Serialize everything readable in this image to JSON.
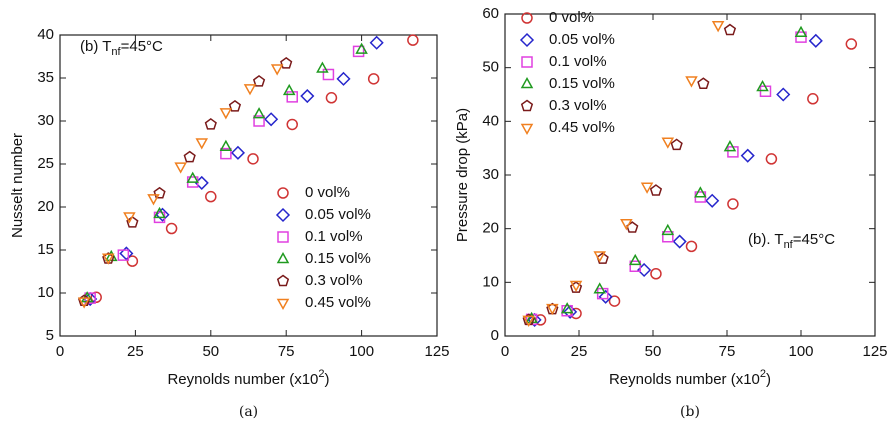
{
  "chart_data": [
    {
      "type": "scatter",
      "caption": "(a)",
      "xlabel": [
        "Reynolds number (x10",
        "2",
        ")"
      ],
      "ylabel": "Nusselt number",
      "annotation": [
        "(b) T",
        "nf",
        "=45°C"
      ],
      "xlim": [
        0,
        125
      ],
      "xticks": [
        0,
        25,
        50,
        75,
        100,
        125
      ],
      "ylim": [
        5,
        40
      ],
      "yticks": [
        5,
        10,
        15,
        20,
        25,
        30,
        35,
        40
      ],
      "legend": "lower right",
      "series": [
        {
          "name": "0 vol%",
          "color": "#d03434",
          "marker": "circle",
          "x": [
            12,
            24,
            37,
            50,
            64,
            77,
            90,
            104,
            117
          ],
          "values": [
            9.5,
            13.7,
            17.5,
            21.2,
            25.6,
            29.6,
            32.7,
            34.9,
            39.4
          ]
        },
        {
          "name": "0.05 vol%",
          "color": "#2626cc",
          "marker": "diamond",
          "x": [
            10,
            22,
            34,
            47,
            59,
            70,
            82,
            94,
            105
          ],
          "values": [
            9.3,
            14.6,
            19.1,
            22.8,
            26.3,
            30.2,
            32.9,
            34.9,
            39.1
          ]
        },
        {
          "name": "0.1 vol%",
          "color": "#e040e0",
          "marker": "square",
          "x": [
            10,
            21,
            33,
            44,
            55,
            66,
            77,
            89,
            99
          ],
          "values": [
            9.4,
            14.4,
            18.8,
            22.9,
            26.2,
            30.0,
            32.8,
            35.4,
            38.1
          ]
        },
        {
          "name": "0.15 vol%",
          "color": "#209a20",
          "marker": "triangle-up",
          "x": [
            9,
            17,
            33,
            44,
            55,
            66,
            76,
            87,
            100
          ],
          "values": [
            9.4,
            14.2,
            19.2,
            23.3,
            27.0,
            30.8,
            33.5,
            36.1,
            38.3
          ]
        },
        {
          "name": "0.3 vol%",
          "color": "#7a1a1a",
          "marker": "pentagon",
          "x": [
            8,
            16,
            24,
            33,
            43,
            50,
            58,
            66,
            75
          ],
          "values": [
            9.1,
            14.0,
            18.2,
            21.6,
            25.8,
            29.6,
            31.7,
            34.6,
            36.7
          ]
        },
        {
          "name": "0.45 vol%",
          "color": "#f08020",
          "marker": "triangle-down",
          "x": [
            8,
            16,
            23,
            31,
            40,
            47,
            55,
            63,
            72
          ],
          "values": [
            9.0,
            14.1,
            18.9,
            21.0,
            24.7,
            27.5,
            31.0,
            33.8,
            36.1
          ]
        }
      ]
    },
    {
      "type": "scatter",
      "caption": "(b)",
      "xlabel": [
        "Reynolds number (x10",
        "2",
        ")"
      ],
      "ylabel": "Pressure drop (kPa)",
      "annotation": [
        "(b). T",
        "nf",
        "=45°C"
      ],
      "xlim": [
        0,
        125
      ],
      "xticks": [
        0,
        25,
        50,
        75,
        100,
        125
      ],
      "ylim": [
        0,
        60
      ],
      "yticks": [
        0,
        10,
        20,
        30,
        40,
        50,
        60
      ],
      "legend": "upper left",
      "series": [
        {
          "name": "0 vol%",
          "color": "#d03434",
          "marker": "circle",
          "x": [
            12,
            24,
            37,
            51,
            63,
            77,
            90,
            104,
            117
          ],
          "values": [
            3.0,
            4.2,
            6.5,
            11.6,
            16.7,
            24.6,
            33.0,
            44.2,
            54.4
          ]
        },
        {
          "name": "0.05 vol%",
          "color": "#2626cc",
          "marker": "diamond",
          "x": [
            10,
            22,
            34,
            47,
            59,
            70,
            82,
            94,
            105
          ],
          "values": [
            3.0,
            4.5,
            7.3,
            12.3,
            17.6,
            25.2,
            33.6,
            45.0,
            55.0
          ]
        },
        {
          "name": "0.1 vol%",
          "color": "#e040e0",
          "marker": "square",
          "x": [
            9,
            21,
            33,
            44,
            55,
            66,
            77,
            88,
            100
          ],
          "values": [
            3.1,
            4.7,
            7.9,
            13.0,
            18.5,
            25.9,
            34.3,
            45.6,
            55.7
          ]
        },
        {
          "name": "0.15 vol%",
          "color": "#209a20",
          "marker": "triangle-up",
          "x": [
            9,
            21,
            32,
            44,
            55,
            66,
            76,
            87,
            100
          ],
          "values": [
            3.2,
            5.0,
            8.7,
            14.0,
            19.6,
            26.6,
            35.2,
            46.4,
            56.5
          ]
        },
        {
          "name": "0.3 vol%",
          "color": "#7a1a1a",
          "marker": "pentagon",
          "x": [
            8,
            16,
            24,
            33,
            43,
            51,
            58,
            67,
            76
          ],
          "values": [
            3.0,
            5.0,
            9.0,
            14.4,
            20.2,
            27.1,
            35.6,
            47.0,
            57.0
          ]
        },
        {
          "name": "0.45 vol%",
          "color": "#f08020",
          "marker": "triangle-down",
          "x": [
            8,
            16,
            24,
            32,
            41,
            48,
            55,
            63,
            72
          ],
          "values": [
            3.0,
            5.2,
            9.5,
            15.0,
            21.0,
            27.8,
            36.2,
            47.6,
            57.9
          ]
        }
      ]
    }
  ]
}
